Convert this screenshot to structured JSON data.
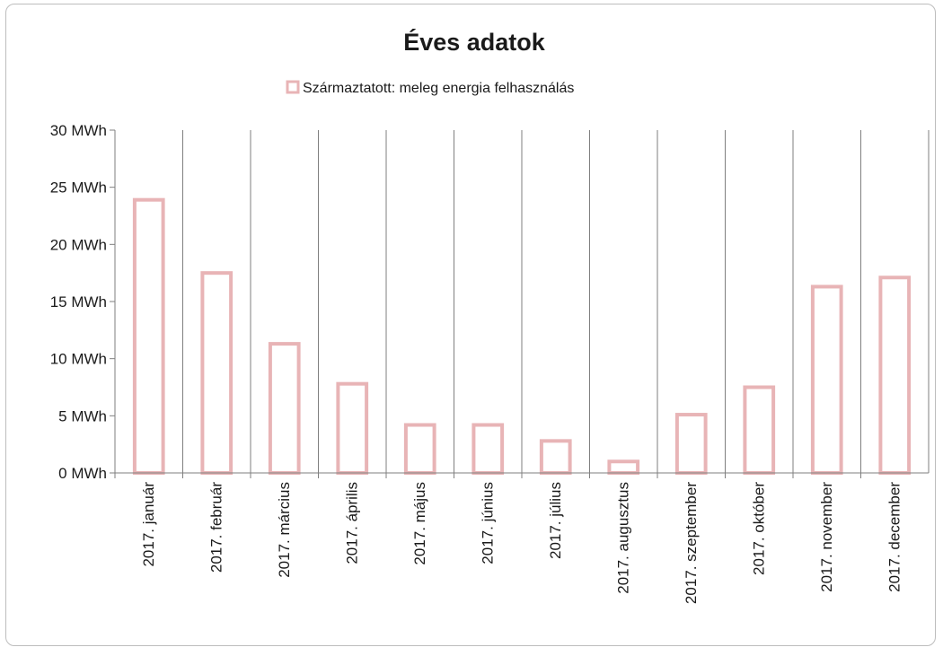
{
  "chart_data": {
    "type": "bar",
    "title": "Éves adatok",
    "legend": {
      "label": "Származtatott: meleg energia felhasználás",
      "placement": "top"
    },
    "categories": [
      "2017. január",
      "2017. február",
      "2017. március",
      "2017. április",
      "2017. május",
      "2017. június",
      "2017. július",
      "2017. augusztus",
      "2017. szeptember",
      "2017. október",
      "2017. november",
      "2017. december"
    ],
    "series": [
      {
        "name": "Származtatott: meleg energia felhasználás",
        "values": [
          23.9,
          17.5,
          11.3,
          7.8,
          4.2,
          4.2,
          2.8,
          1.0,
          5.1,
          7.5,
          16.3,
          17.1
        ]
      }
    ],
    "yticks": [
      "0 MWh",
      "5 MWh",
      "10 MWh",
      "15 MWh",
      "20 MWh",
      "25 MWh",
      "30 MWh"
    ],
    "ylim": [
      0,
      30
    ],
    "ytick_step": 5,
    "grid": "vertical",
    "colors": {
      "bar_stroke": "#e8b4b6",
      "bar_fill": "#ffffff",
      "grid": "#7f7f7f",
      "axis": "#7f7f7f"
    }
  }
}
